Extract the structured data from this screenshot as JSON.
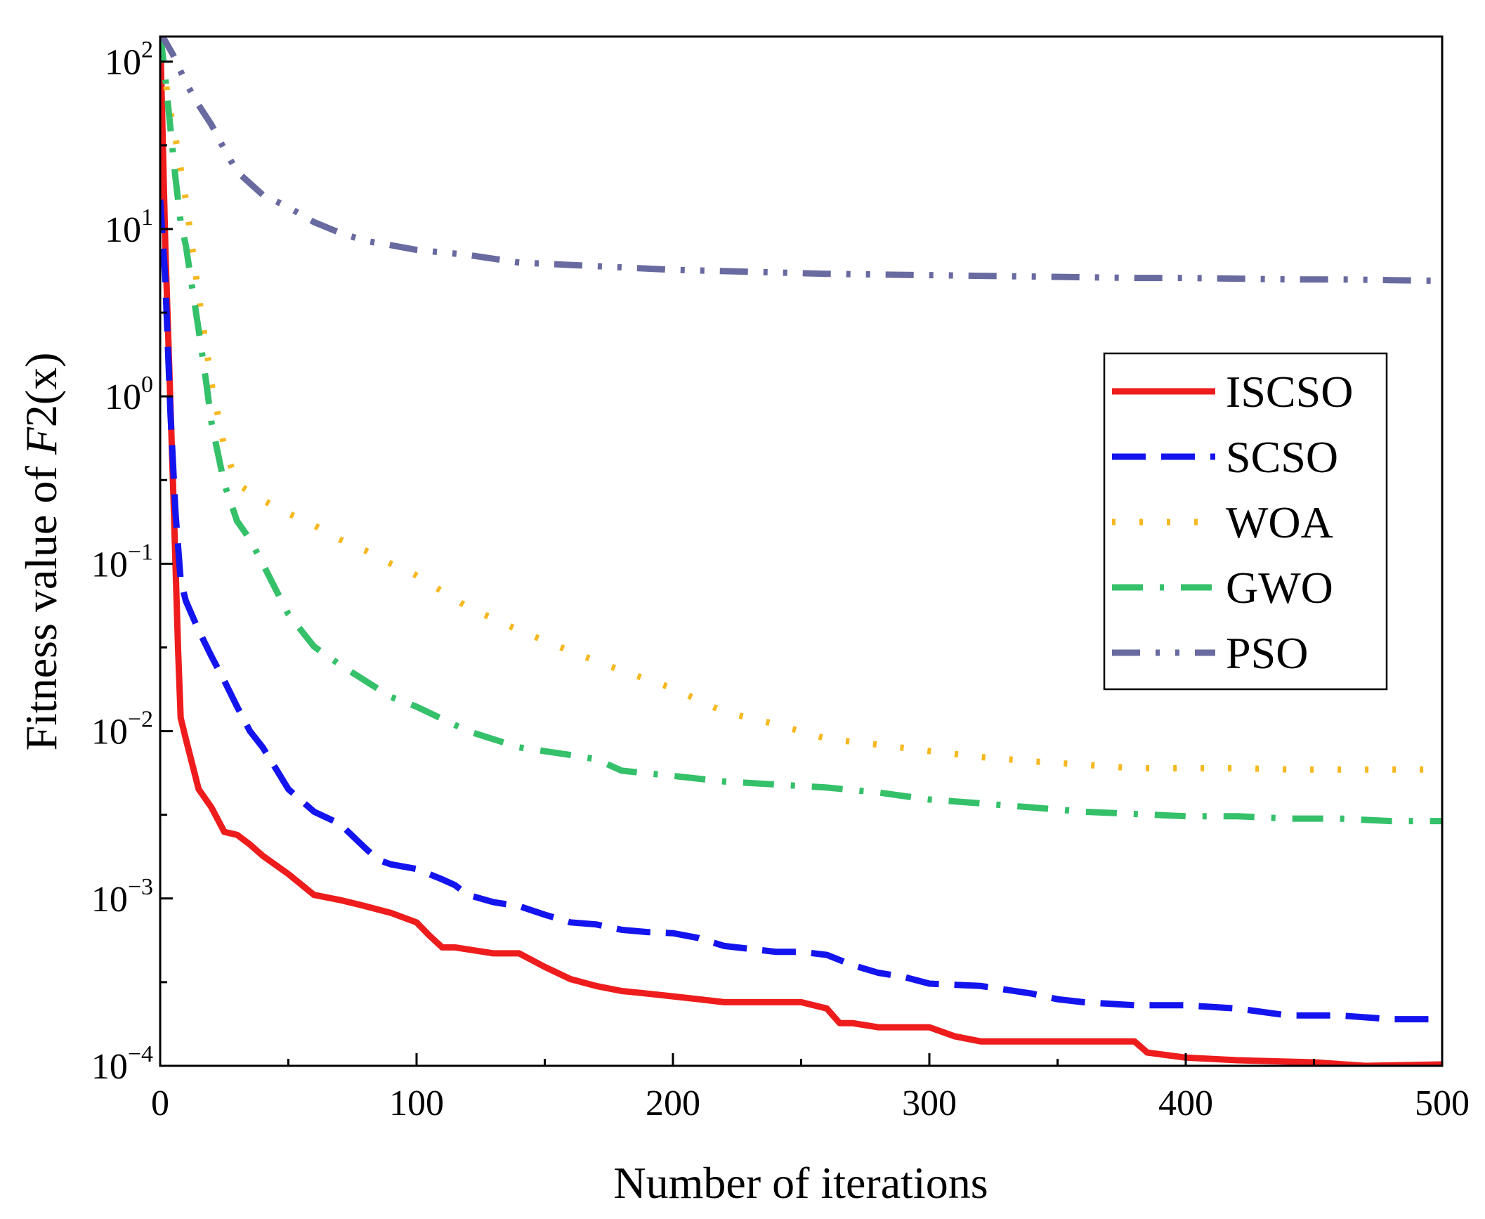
{
  "chart_data": {
    "type": "line",
    "title": "",
    "xlabel": "Number of iterations",
    "ylabel_prefix": "Fitness value of ",
    "ylabel_italic": "F",
    "ylabel_suffix": "2(x)",
    "xlim": [
      0,
      500
    ],
    "ylim_log10": [
      -4,
      2.15
    ],
    "yscale": "log",
    "grid": false,
    "legend_position": "right",
    "x_ticks": [
      {
        "value": 0,
        "label": "0"
      },
      {
        "value": 100,
        "label": "100"
      },
      {
        "value": 200,
        "label": "200"
      },
      {
        "value": 300,
        "label": "300"
      },
      {
        "value": 400,
        "label": "400"
      },
      {
        "value": 500,
        "label": "500"
      }
    ],
    "x_minor_ticks": [
      50,
      150,
      250,
      350,
      450
    ],
    "y_ticks": [
      {
        "exp": 2,
        "base": "10",
        "sup": "2"
      },
      {
        "exp": 1,
        "base": "10",
        "sup": "1"
      },
      {
        "exp": 0,
        "base": "10",
        "sup": "0"
      },
      {
        "exp": -1,
        "base": "10",
        "sup": "−1"
      },
      {
        "exp": -2,
        "base": "10",
        "sup": "−2"
      },
      {
        "exp": -3,
        "base": "10",
        "sup": "−3"
      },
      {
        "exp": -4,
        "base": "10",
        "sup": "−4"
      }
    ],
    "y_minor_ticks_exp": [
      1.5,
      0.5,
      -0.5,
      -1.5,
      -2.5,
      -3.5
    ],
    "series": [
      {
        "name": "ISCSO",
        "color": "#ee1c1c",
        "dash": "solid",
        "x": [
          0,
          2,
          5,
          7,
          8,
          10,
          15,
          20,
          25,
          30,
          35,
          40,
          50,
          60,
          70,
          80,
          90,
          100,
          105,
          110,
          115,
          130,
          140,
          150,
          160,
          170,
          180,
          190,
          200,
          210,
          220,
          240,
          250,
          260,
          265,
          270,
          280,
          300,
          310,
          320,
          380,
          385,
          400,
          420,
          450,
          470,
          500
        ],
        "y": [
          150,
          8,
          0.3,
          0.03,
          0.012,
          0.009,
          0.0045,
          0.0035,
          0.0025,
          0.0024,
          0.0021,
          0.0018,
          0.0014,
          0.00105,
          0.00098,
          0.0009,
          0.00082,
          0.00072,
          0.0006,
          0.00051,
          0.00051,
          0.00047,
          0.00047,
          0.00039,
          0.00033,
          0.0003,
          0.00028,
          0.00027,
          0.00026,
          0.00025,
          0.00024,
          0.00024,
          0.00024,
          0.00022,
          0.00018,
          0.00018,
          0.00017,
          0.00017,
          0.00015,
          0.00014,
          0.00014,
          0.00012,
          0.000112,
          0.000108,
          0.000105,
          0.0001,
          0.000102
        ]
      },
      {
        "name": "SCSO",
        "color": "#1414ee",
        "dash": "dash",
        "x": [
          0,
          2,
          4,
          6,
          8,
          10,
          15,
          20,
          25,
          30,
          35,
          40,
          45,
          50,
          60,
          70,
          80,
          85,
          90,
          100,
          110,
          115,
          120,
          130,
          140,
          150,
          160,
          170,
          180,
          190,
          200,
          210,
          220,
          230,
          240,
          250,
          260,
          270,
          280,
          290,
          300,
          320,
          340,
          350,
          360,
          380,
          400,
          420,
          440,
          460,
          480,
          500
        ],
        "y": [
          15,
          5,
          0.8,
          0.2,
          0.08,
          0.06,
          0.04,
          0.028,
          0.02,
          0.014,
          0.01,
          0.008,
          0.006,
          0.0045,
          0.0033,
          0.0028,
          0.002,
          0.0017,
          0.0016,
          0.0015,
          0.0013,
          0.0012,
          0.00105,
          0.00095,
          0.0009,
          0.0008,
          0.00072,
          0.0007,
          0.00065,
          0.00063,
          0.00062,
          0.00058,
          0.00052,
          0.0005,
          0.00048,
          0.00048,
          0.00046,
          0.0004,
          0.00036,
          0.00034,
          0.00031,
          0.0003,
          0.00027,
          0.00025,
          0.00024,
          0.00023,
          0.00023,
          0.00022,
          0.0002,
          0.0002,
          0.00019,
          0.00019
        ]
      },
      {
        "name": "WOA",
        "color": "#f5b820",
        "dash": "dot",
        "x": [
          0,
          3,
          6,
          10,
          15,
          20,
          25,
          30,
          40,
          50,
          60,
          70,
          80,
          90,
          100,
          120,
          140,
          160,
          180,
          200,
          220,
          240,
          260,
          280,
          300,
          320,
          340,
          360,
          380,
          400,
          420,
          440,
          460,
          480,
          500
        ],
        "y": [
          150,
          60,
          35,
          15,
          4,
          1.2,
          0.5,
          0.3,
          0.24,
          0.2,
          0.17,
          0.14,
          0.12,
          0.1,
          0.085,
          0.055,
          0.04,
          0.03,
          0.023,
          0.018,
          0.013,
          0.011,
          0.009,
          0.0083,
          0.0076,
          0.007,
          0.0066,
          0.0063,
          0.006,
          0.006,
          0.006,
          0.0059,
          0.0059,
          0.0059,
          0.0059
        ]
      },
      {
        "name": "GWO",
        "color": "#35c06a",
        "dash": "dashdot",
        "x": [
          0,
          2,
          4,
          6,
          8,
          10,
          12,
          15,
          18,
          20,
          25,
          30,
          35,
          40,
          50,
          60,
          70,
          80,
          90,
          100,
          120,
          140,
          160,
          170,
          180,
          200,
          220,
          250,
          260,
          280,
          300,
          320,
          340,
          360,
          380,
          400,
          420,
          440,
          460,
          480,
          500
        ],
        "y": [
          150,
          80,
          40,
          20,
          11,
          8,
          5,
          2.5,
          1.2,
          0.7,
          0.3,
          0.18,
          0.14,
          0.1,
          0.05,
          0.032,
          0.025,
          0.02,
          0.016,
          0.014,
          0.01,
          0.008,
          0.0072,
          0.0068,
          0.0058,
          0.0054,
          0.005,
          0.0047,
          0.0046,
          0.0043,
          0.0039,
          0.0037,
          0.0035,
          0.0033,
          0.0032,
          0.0031,
          0.0031,
          0.003,
          0.003,
          0.0029,
          0.0029
        ]
      },
      {
        "name": "PSO",
        "color": "#686aa0",
        "dash": "dashdotdot",
        "x": [
          0,
          5,
          10,
          15,
          20,
          25,
          30,
          40,
          50,
          60,
          70,
          80,
          90,
          100,
          120,
          140,
          160,
          180,
          200,
          220,
          240,
          260,
          280,
          300,
          320,
          340,
          360,
          380,
          400,
          420,
          440,
          460,
          480,
          500
        ],
        "y": [
          150,
          110,
          75,
          55,
          42,
          30,
          22,
          16,
          13.5,
          11,
          9.5,
          8.5,
          8,
          7.5,
          7,
          6.3,
          6.1,
          5.9,
          5.7,
          5.6,
          5.5,
          5.4,
          5.35,
          5.3,
          5.25,
          5.2,
          5.15,
          5.1,
          5.1,
          5.05,
          5.0,
          5.0,
          4.95,
          4.9
        ]
      }
    ]
  }
}
